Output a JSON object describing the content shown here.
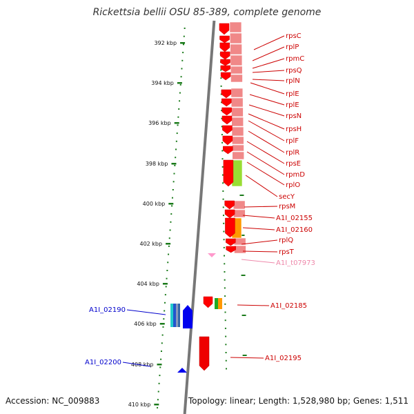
{
  "title": "Rickettsia bellii OSU 85-389, complete genome",
  "footer": {
    "accession": "Accession: NC_009883",
    "summary": "Topology: linear; Length: 1,528,980 bp; Genes: 1,511"
  },
  "colors": {
    "backbone": "#777777",
    "tick": "#1a7a1a",
    "label_red": "#cc0000",
    "label_pink": "#ee88aa",
    "label_blue": "#0000cc"
  },
  "ruler": {
    "kbp_labels": [
      "392 kbp",
      "394 kbp",
      "396 kbp",
      "398 kbp",
      "400 kbp",
      "402 kbp",
      "404 kbp",
      "406 kbp",
      "408 kbp",
      "410 kbp"
    ]
  },
  "genes_right": [
    {
      "name": "rpsC"
    },
    {
      "name": "rplP"
    },
    {
      "name": "rpmC"
    },
    {
      "name": "rpsQ"
    },
    {
      "name": "rplN"
    },
    {
      "name": "rplE"
    },
    {
      "name": "rplE"
    },
    {
      "name": "rpsN"
    },
    {
      "name": "rpsH"
    },
    {
      "name": "rplF"
    },
    {
      "name": "rplR"
    },
    {
      "name": "rpsE"
    },
    {
      "name": "rpmD"
    },
    {
      "name": "rplO"
    },
    {
      "name": "secY"
    },
    {
      "name": "rpsM"
    },
    {
      "name": "A1I_02155"
    },
    {
      "name": "A1I_02160"
    },
    {
      "name": "rplQ"
    },
    {
      "name": "rpsT"
    },
    {
      "name": "A1I_t07973"
    },
    {
      "name": "A1I_02185"
    },
    {
      "name": "A1I_02195"
    }
  ],
  "genes_left": [
    {
      "name": "A1I_02190"
    },
    {
      "name": "A1I_02200"
    }
  ]
}
